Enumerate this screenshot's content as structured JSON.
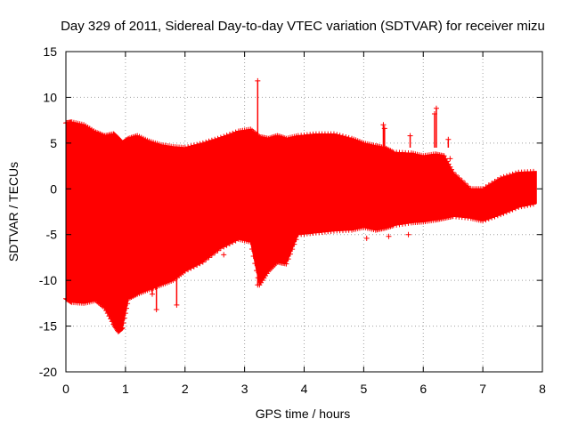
{
  "chart_data": {
    "type": "scatter",
    "title": "Day 329 of 2011, Sidereal Day-to-day VTEC variation (SDTVAR) for receiver mizu",
    "xlabel": "GPS time / hours",
    "ylabel": "SDTVAR / TECUs",
    "xlim": [
      0,
      8
    ],
    "ylim": [
      -20,
      15
    ],
    "xticks": [
      0,
      1,
      2,
      3,
      4,
      5,
      6,
      7,
      8
    ],
    "yticks": [
      -20,
      -15,
      -10,
      -5,
      0,
      5,
      10,
      15
    ],
    "grid": true,
    "marker": "+",
    "color": "#ff0000",
    "envelope": {
      "x": [
        0.0,
        0.1,
        0.3,
        0.5,
        0.65,
        0.8,
        0.88,
        0.95,
        1.05,
        1.2,
        1.4,
        1.6,
        1.8,
        2.0,
        2.3,
        2.6,
        2.9,
        3.1,
        3.25,
        3.4,
        3.55,
        3.7,
        3.9,
        4.2,
        4.5,
        4.8,
        5.0,
        5.2,
        5.35,
        5.5,
        5.8,
        6.0,
        6.2,
        6.35,
        6.5,
        6.8,
        7.0,
        7.3,
        7.6,
        7.9
      ],
      "upper": [
        7.2,
        7.3,
        7.0,
        6.2,
        5.8,
        6.0,
        5.5,
        5.0,
        5.5,
        5.8,
        5.2,
        4.8,
        4.6,
        4.5,
        5.0,
        5.6,
        6.3,
        6.5,
        5.7,
        5.5,
        5.8,
        5.5,
        5.8,
        6.0,
        6.0,
        5.5,
        5.0,
        4.7,
        4.5,
        4.0,
        3.9,
        3.6,
        3.8,
        3.6,
        1.8,
        0.0,
        0.0,
        1.2,
        1.8,
        1.9
      ],
      "lower": [
        -12.0,
        -12.4,
        -12.5,
        -12.2,
        -13.0,
        -14.8,
        -15.6,
        -15.2,
        -12.0,
        -11.5,
        -11.0,
        -10.5,
        -10.0,
        -9.0,
        -8.0,
        -6.5,
        -5.5,
        -5.8,
        -10.5,
        -9.0,
        -8.0,
        -8.2,
        -5.0,
        -4.8,
        -4.6,
        -4.5,
        -4.2,
        -4.5,
        -4.3,
        -4.0,
        -3.7,
        -3.6,
        -3.4,
        -3.2,
        -3.0,
        -3.2,
        -3.5,
        -2.8,
        -2.0,
        -1.6
      ]
    },
    "spikes": [
      {
        "x": 3.22,
        "y": 11.8
      },
      {
        "x": 6.22,
        "y": 8.8
      },
      {
        "x": 6.19,
        "y": 8.2
      },
      {
        "x": 5.33,
        "y": 7.0
      },
      {
        "x": 5.35,
        "y": 6.6
      },
      {
        "x": 5.78,
        "y": 5.8
      },
      {
        "x": 6.42,
        "y": 5.4
      },
      {
        "x": 6.45,
        "y": 3.3
      },
      {
        "x": 1.52,
        "y": -13.2
      },
      {
        "x": 1.86,
        "y": -12.7
      },
      {
        "x": 2.65,
        "y": -7.2
      },
      {
        "x": 1.45,
        "y": -11.5
      },
      {
        "x": 3.22,
        "y": -10.5
      },
      {
        "x": 5.42,
        "y": -5.2
      },
      {
        "x": 5.75,
        "y": -5.0
      },
      {
        "x": 5.05,
        "y": -5.4
      }
    ]
  }
}
